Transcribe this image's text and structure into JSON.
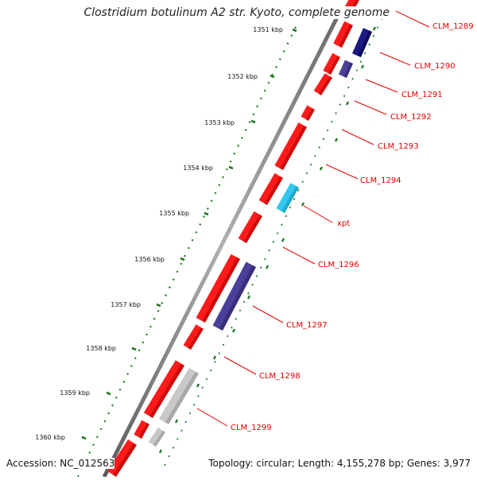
{
  "title": "Clostridium botulinum A2 str. Kyoto, complete genome",
  "accession": "Accession: NC_012563",
  "summary": "Topology: circular; Length: 4,155,278 bp; Genes: 3,977",
  "colors": {
    "forward_cds": "#ff1a1a",
    "reverse_cds_dark": "#1a1a80",
    "reverse_cds": "#4a3f99",
    "reverse_cds_cyan": "#33c8f0",
    "grey_feature": "#c8c8c8",
    "tick_marks": "#1f7a1f",
    "backbone": "#8c8c8c",
    "label_text": "#e00000"
  },
  "ruler": {
    "unit": "kbp",
    "labels": [
      "1351 kbp",
      "1352 kbp",
      "1353 kbp",
      "1354 kbp",
      "1355 kbp",
      "1356 kbp",
      "1357 kbp",
      "1358 kbp",
      "1359 kbp",
      "1360 kbp"
    ]
  },
  "genes": [
    {
      "label": "CLM_1289"
    },
    {
      "label": "CLM_1290"
    },
    {
      "label": "CLM_1291"
    },
    {
      "label": "CLM_1292"
    },
    {
      "label": "CLM_1293"
    },
    {
      "label": "CLM_1294"
    },
    {
      "label": "xpt"
    },
    {
      "label": "CLM_1296"
    },
    {
      "label": "CLM_1297"
    },
    {
      "label": "CLM_1298"
    },
    {
      "label": "CLM_1299"
    }
  ]
}
